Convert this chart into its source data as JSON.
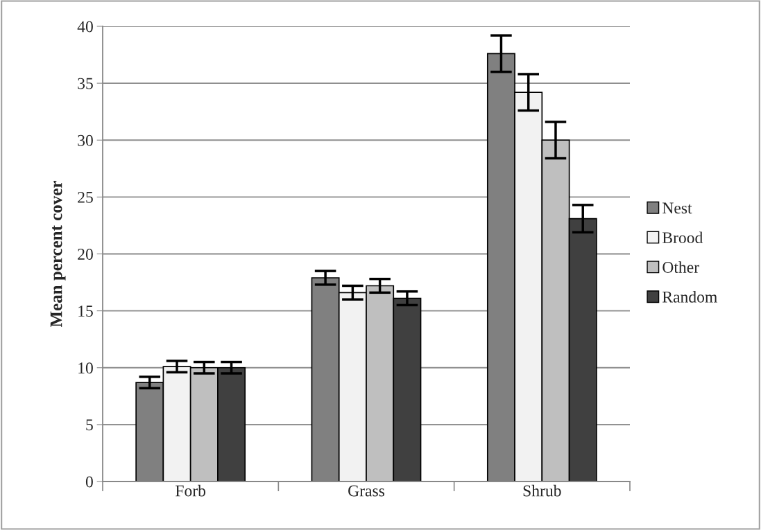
{
  "chart_data": {
    "type": "bar",
    "ylabel": "Mean percent cover",
    "categories": [
      "Forb",
      "Grass",
      "Shrub"
    ],
    "series": [
      {
        "name": "Nest",
        "color": "#808080",
        "values": [
          8.7,
          17.9,
          37.6
        ],
        "errors": [
          0.5,
          0.6,
          1.6
        ]
      },
      {
        "name": "Brood",
        "color": "#f2f2f2",
        "values": [
          10.1,
          16.6,
          34.2
        ],
        "errors": [
          0.5,
          0.6,
          1.6
        ]
      },
      {
        "name": "Other",
        "color": "#bfbfbf",
        "values": [
          10.0,
          17.2,
          30.0
        ],
        "errors": [
          0.5,
          0.6,
          1.6
        ]
      },
      {
        "name": "Random",
        "color": "#404040",
        "values": [
          10.0,
          16.1,
          23.1
        ],
        "errors": [
          0.5,
          0.6,
          1.2
        ]
      }
    ],
    "ylim": [
      0,
      40
    ],
    "yticks": [
      0,
      5,
      10,
      15,
      20,
      25,
      30,
      35,
      40
    ],
    "grid": "y",
    "legend": "right"
  }
}
